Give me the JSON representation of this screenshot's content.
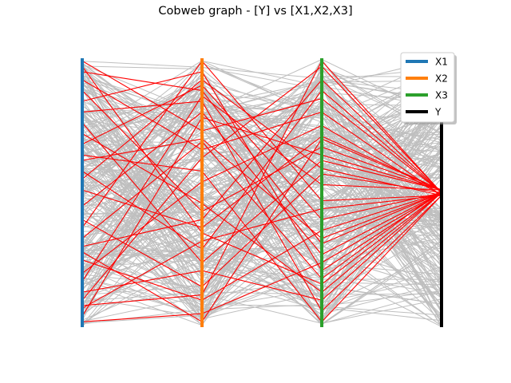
{
  "chart_data": {
    "type": "parallel_coordinates",
    "title": "Cobweb graph - [Y] vs [X1,X2,X3]",
    "axes": [
      "X1",
      "X2",
      "X3",
      "Y"
    ],
    "axis_colors": {
      "X1": "#1f77b4",
      "X2": "#ff7f0e",
      "X3": "#2ca02c",
      "Y": "#000000"
    },
    "background_line_color": "#bfbfbf",
    "highlight_line_color": "#ff0000",
    "highlight_rank_range": [
      0.48,
      0.52
    ],
    "legend": {
      "position": "upper right",
      "entries": [
        {
          "label": "X1",
          "color": "#1f77b4"
        },
        {
          "label": "X2",
          "color": "#ff7f0e"
        },
        {
          "label": "X3",
          "color": "#2ca02c"
        },
        {
          "label": "Y",
          "color": "#000000"
        }
      ]
    },
    "highlighted_samples_ranks": [
      [
        0.99,
        0.73,
        0.85,
        0.5
      ],
      [
        0.95,
        0.88,
        0.31,
        0.5
      ],
      [
        0.92,
        0.66,
        0.8,
        0.49
      ],
      [
        0.88,
        0.43,
        0.67,
        0.51
      ],
      [
        0.84,
        0.95,
        0.21,
        0.5
      ],
      [
        0.8,
        0.84,
        0.06,
        0.49
      ],
      [
        0.76,
        0.24,
        0.62,
        0.51
      ],
      [
        0.72,
        0.46,
        0.13,
        0.5
      ],
      [
        0.68,
        0.9,
        0.4,
        0.5
      ],
      [
        0.64,
        0.58,
        0.02,
        0.49
      ],
      [
        0.51,
        0.37,
        0.71,
        0.51
      ],
      [
        0.45,
        0.8,
        0.27,
        0.5
      ],
      [
        0.4,
        0.15,
        0.57,
        0.5
      ],
      [
        0.37,
        0.99,
        0.47,
        0.49
      ],
      [
        0.33,
        0.69,
        0.18,
        0.51
      ],
      [
        0.3,
        0.4,
        0.92,
        0.5
      ],
      [
        0.25,
        0.1,
        0.36,
        0.5
      ],
      [
        0.2,
        0.54,
        0.75,
        0.49
      ],
      [
        0.17,
        0.86,
        0.53,
        0.51
      ],
      [
        0.13,
        0.21,
        0.1,
        0.5
      ],
      [
        0.1,
        0.63,
        0.97,
        0.5
      ],
      [
        0.07,
        0.32,
        0.44,
        0.49
      ],
      [
        0.04,
        0.78,
        0.64,
        0.51
      ],
      [
        0.02,
        0.05,
        0.24,
        0.5
      ],
      [
        0.58,
        0.29,
        0.88,
        0.5
      ],
      [
        0.55,
        0.92,
        0.59,
        0.49
      ],
      [
        0.28,
        0.02,
        0.7,
        0.51
      ],
      [
        0.08,
        0.12,
        0.99,
        0.5
      ],
      [
        0.97,
        0.35,
        0.16,
        0.5
      ],
      [
        0.62,
        0.7,
        0.33,
        0.5
      ]
    ]
  }
}
